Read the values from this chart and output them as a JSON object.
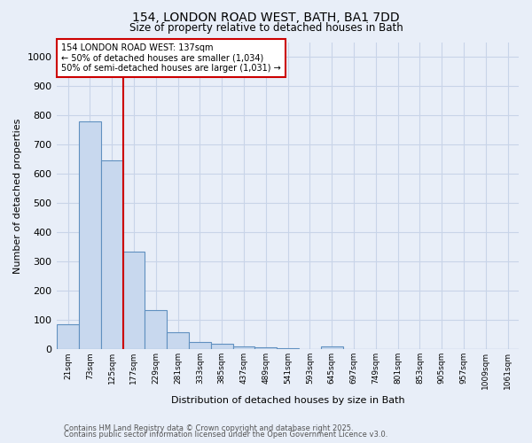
{
  "title_line1": "154, LONDON ROAD WEST, BATH, BA1 7DD",
  "title_line2": "Size of property relative to detached houses in Bath",
  "xlabel": "Distribution of detached houses by size in Bath",
  "ylabel": "Number of detached properties",
  "bar_color": "#c8d8ee",
  "bar_edge_color": "#6090c0",
  "background_color": "#e8eef8",
  "grid_color": "#c8d4e8",
  "categories": [
    "21sqm",
    "73sqm",
    "125sqm",
    "177sqm",
    "229sqm",
    "281sqm",
    "333sqm",
    "385sqm",
    "437sqm",
    "489sqm",
    "541sqm",
    "593sqm",
    "645sqm",
    "697sqm",
    "749sqm",
    "801sqm",
    "853sqm",
    "905sqm",
    "957sqm",
    "1009sqm",
    "1061sqm"
  ],
  "values": [
    85,
    780,
    645,
    335,
    135,
    58,
    25,
    20,
    10,
    8,
    5,
    0,
    10,
    0,
    0,
    0,
    0,
    0,
    0,
    0,
    0
  ],
  "red_line_x": 2.5,
  "red_line_color": "#cc0000",
  "annotation_text": "154 LONDON ROAD WEST: 137sqm\n← 50% of detached houses are smaller (1,034)\n50% of semi-detached houses are larger (1,031) →",
  "annotation_box_color": "#ffffff",
  "annotation_edge_color": "#cc0000",
  "ylim": [
    0,
    1050
  ],
  "yticks": [
    0,
    100,
    200,
    300,
    400,
    500,
    600,
    700,
    800,
    900,
    1000
  ],
  "footer_line1": "Contains HM Land Registry data © Crown copyright and database right 2025.",
  "footer_line2": "Contains public sector information licensed under the Open Government Licence v3.0."
}
